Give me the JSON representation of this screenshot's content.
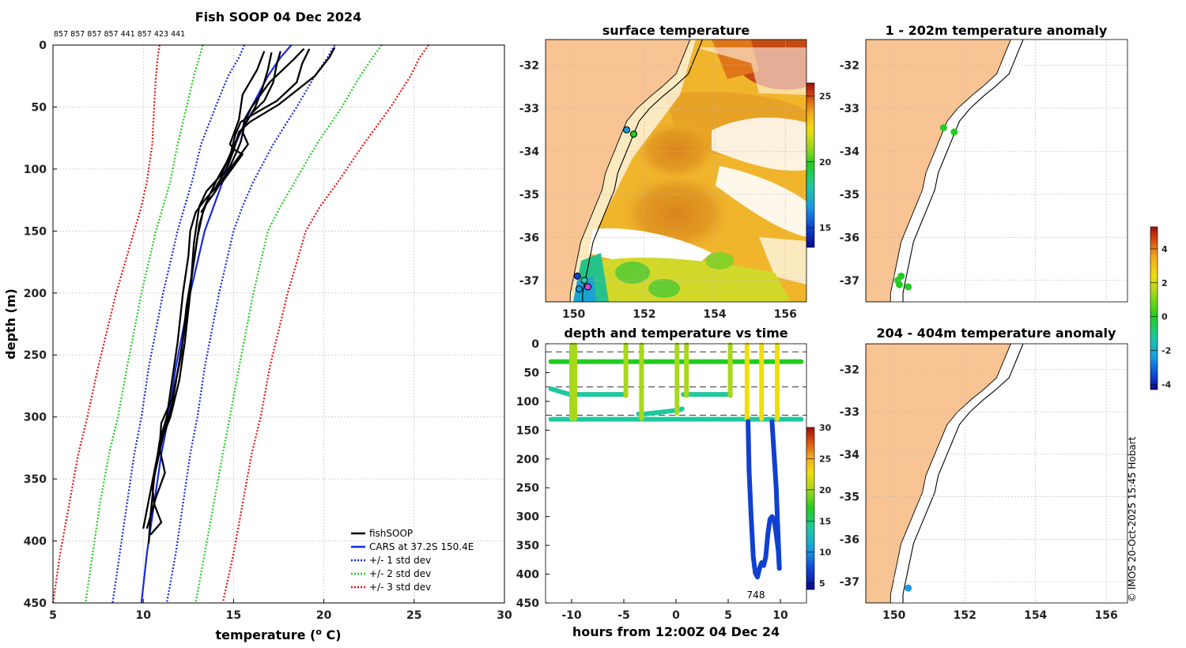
{
  "chart_data": [
    {
      "type": "line",
      "id": "profile",
      "title": "Fish SOOP 04 Dec 2024",
      "count_labels": "857 857 857 857 441 857 423 441",
      "xlabel_main": "temperature (",
      "xlabel_sup": "o",
      "xlabel_end": " C)",
      "ylabel": "depth (m)",
      "xlim": [
        5,
        30
      ],
      "ylim": [
        450,
        0
      ],
      "xticks": [
        5,
        10,
        15,
        20,
        25,
        30
      ],
      "yticks": [
        0,
        50,
        100,
        150,
        200,
        250,
        300,
        350,
        400,
        450
      ],
      "legend": [
        "fishSOOP",
        "CARS at 37.2S 150.4E",
        "+/- 1 std dev",
        "+/- 2 std dev",
        "+/- 3 std dev"
      ],
      "series": [
        {
          "name": "CARS at 37.2S 150.4E",
          "color": "#1528e0",
          "style": "solid",
          "x": [
            18.2,
            17.6,
            16.9,
            16.0,
            15.1,
            14.4,
            13.9,
            13.4,
            13.0,
            12.6,
            12.2,
            11.8,
            11.4,
            11.0,
            10.6,
            10.2,
            9.9
          ],
          "y": [
            0,
            10,
            25,
            50,
            80,
            110,
            130,
            150,
            175,
            200,
            230,
            260,
            300,
            330,
            370,
            410,
            450
          ]
        },
        {
          "name": "+1 std",
          "color": "#1528e0",
          "style": "dotted",
          "x": [
            20.6,
            20.2,
            19.5,
            18.5,
            17.2,
            16.1,
            15.5,
            15.0,
            14.6,
            14.2,
            13.8,
            13.4,
            13.0,
            12.6,
            12.2,
            11.8,
            11.3
          ],
          "y": [
            0,
            10,
            25,
            50,
            80,
            110,
            130,
            150,
            175,
            200,
            230,
            260,
            300,
            330,
            370,
            410,
            450
          ]
        },
        {
          "name": "-1 std",
          "color": "#1528e0",
          "style": "dotted",
          "x": [
            15.6,
            15.3,
            14.7,
            14.0,
            13.2,
            12.7,
            12.3,
            11.9,
            11.5,
            11.1,
            10.7,
            10.3,
            9.9,
            9.5,
            9.1,
            8.7,
            8.3
          ],
          "y": [
            0,
            10,
            25,
            50,
            80,
            110,
            130,
            150,
            175,
            200,
            230,
            260,
            300,
            330,
            370,
            410,
            450
          ]
        },
        {
          "name": "+2 std",
          "color": "#22cc22",
          "style": "dotted",
          "x": [
            23.2,
            22.7,
            22.0,
            21.0,
            19.6,
            18.4,
            17.6,
            16.9,
            16.5,
            16.1,
            15.7,
            15.3,
            14.8,
            14.4,
            13.9,
            13.4,
            12.9
          ],
          "y": [
            0,
            10,
            25,
            50,
            80,
            110,
            130,
            150,
            175,
            200,
            230,
            260,
            300,
            330,
            370,
            410,
            450
          ]
        },
        {
          "name": "-2 std",
          "color": "#22cc22",
          "style": "dotted",
          "x": [
            13.3,
            13.1,
            12.8,
            12.4,
            11.9,
            11.5,
            11.1,
            10.7,
            10.3,
            9.9,
            9.5,
            9.1,
            8.6,
            8.1,
            7.6,
            7.2,
            6.8
          ],
          "y": [
            0,
            10,
            25,
            50,
            80,
            110,
            130,
            150,
            175,
            200,
            230,
            260,
            300,
            330,
            370,
            410,
            450
          ]
        },
        {
          "name": "+3 std",
          "color": "#ee1111",
          "style": "dotted",
          "x": [
            25.8,
            25.3,
            24.8,
            23.7,
            22.2,
            20.8,
            19.8,
            19.0,
            18.5,
            18.0,
            17.5,
            17.0,
            16.5,
            16.0,
            15.5,
            15.0,
            14.4
          ],
          "y": [
            0,
            10,
            25,
            50,
            80,
            110,
            130,
            150,
            175,
            200,
            230,
            260,
            300,
            330,
            370,
            410,
            450
          ]
        },
        {
          "name": "-3 std",
          "color": "#ee1111",
          "style": "dotted",
          "x": [
            10.9,
            10.8,
            10.7,
            10.6,
            10.5,
            10.2,
            9.9,
            9.5,
            9.0,
            8.5,
            8.0,
            7.5,
            6.9,
            6.4,
            5.9,
            5.4,
            5.0
          ],
          "y": [
            0,
            10,
            25,
            50,
            80,
            110,
            130,
            150,
            175,
            200,
            230,
            260,
            300,
            330,
            370,
            410,
            450
          ]
        },
        {
          "name": "fishSOOP cast 1",
          "color": "#000000",
          "style": "solid",
          "x": [
            20.6,
            20.3,
            19.5,
            17.5,
            15.9,
            15.3,
            15.0,
            14.6,
            14.0,
            13.4,
            12.9,
            12.6,
            12.5,
            12.2,
            11.9,
            11.6,
            11.3,
            10.9,
            10.6,
            10.4,
            10.3
          ],
          "y": [
            2,
            10,
            25,
            48,
            62,
            70,
            85,
            100,
            115,
            125,
            135,
            150,
            170,
            200,
            240,
            270,
            300,
            320,
            350,
            380,
            402
          ]
        },
        {
          "name": "fishSOOP cast 2",
          "color": "#000000",
          "style": "solid",
          "x": [
            19.2,
            18.8,
            18.5,
            17.4,
            16.2,
            15.4,
            15.1,
            14.8,
            14.3,
            13.5,
            13.1,
            12.8,
            12.6,
            12.3,
            12.0,
            11.5,
            11.1,
            10.8,
            10.5,
            10.6,
            11.0,
            10.4
          ],
          "y": [
            3,
            15,
            30,
            45,
            55,
            62,
            72,
            90,
            105,
            118,
            130,
            160,
            200,
            240,
            270,
            300,
            315,
            335,
            355,
            370,
            385,
            395
          ]
        },
        {
          "name": "fishSOOP cast 3",
          "color": "#000000",
          "style": "solid",
          "x": [
            17.6,
            17.4,
            17.2,
            16.7,
            16.0,
            15.6,
            15.4,
            15.2,
            14.8,
            14.4,
            13.7,
            13.4,
            13.1,
            12.8,
            12.4,
            12.1,
            11.6,
            11.0,
            10.9,
            11.2,
            10.7,
            10.2
          ],
          "y": [
            5,
            15,
            30,
            45,
            55,
            65,
            78,
            85,
            98,
            110,
            120,
            130,
            145,
            175,
            210,
            250,
            285,
            305,
            325,
            345,
            365,
            390
          ]
        },
        {
          "name": "fishSOOP cast 4",
          "color": "#000000",
          "style": "solid",
          "x": [
            17.1,
            16.9,
            16.6,
            16.2,
            15.8,
            15.3,
            15.0,
            14.6,
            14.1,
            13.7,
            13.3,
            13.0,
            12.7,
            12.4,
            12.0,
            11.6,
            11.2,
            10.8,
            10.4,
            10.0
          ],
          "y": [
            6,
            20,
            35,
            50,
            60,
            72,
            82,
            95,
            108,
            120,
            135,
            155,
            185,
            220,
            255,
            290,
            310,
            330,
            360,
            390
          ]
        },
        {
          "name": "fishSOOP cast 5",
          "color": "#000000",
          "style": "solid",
          "x": [
            18.9,
            18.3,
            17.0,
            16.0,
            15.6,
            15.5,
            15.8,
            15.2,
            14.4,
            14.0,
            13.5,
            13.2
          ],
          "y": [
            3,
            12,
            30,
            50,
            60,
            70,
            80,
            92,
            108,
            118,
            128,
            135
          ]
        },
        {
          "name": "fishSOOP cast 6",
          "color": "#000000",
          "style": "solid",
          "x": [
            16.7,
            16.3,
            15.5,
            15.3,
            15.0,
            14.8,
            15.1,
            15.5,
            14.9,
            14.3
          ],
          "y": [
            5,
            20,
            40,
            60,
            72,
            80,
            85,
            88,
            100,
            112
          ]
        }
      ]
    },
    {
      "type": "heatmap",
      "id": "sst_map",
      "title": "surface temperature",
      "xlim": [
        149.2,
        156.6
      ],
      "ylim": [
        -37.5,
        -31.4
      ],
      "xticks": [
        150,
        152,
        154,
        156
      ],
      "yticks": [
        -32,
        -33,
        -34,
        -35,
        -36,
        -37
      ],
      "colorbar": {
        "ticks": [
          15,
          20,
          25
        ],
        "range": [
          13.5,
          26
        ]
      },
      "markers": [
        {
          "lon": 151.5,
          "lat": -33.5
        },
        {
          "lon": 151.7,
          "lat": -33.6
        },
        {
          "lon": 150.1,
          "lat": -36.9
        },
        {
          "lon": 150.3,
          "lat": -37.0
        },
        {
          "lon": 150.4,
          "lat": -37.15
        },
        {
          "lon": 150.15,
          "lat": -37.2
        }
      ]
    },
    {
      "type": "scatter",
      "id": "depth_time",
      "title": "depth and temperature vs time",
      "xlabel": "hours from 12:00Z 04 Dec 24",
      "xlim": [
        -12.5,
        12.5
      ],
      "ylim": [
        450,
        0
      ],
      "xticks": [
        -10,
        -5,
        0,
        5,
        10
      ],
      "yticks": [
        0,
        50,
        100,
        150,
        200,
        250,
        300,
        350,
        400,
        450
      ],
      "annotation": "748",
      "reference_depths": [
        14,
        75,
        124
      ],
      "colorbar": {
        "ticks": [
          5,
          10,
          15,
          20,
          25,
          30
        ],
        "range": [
          4,
          30
        ]
      },
      "tracks": [
        {
          "x": [
            -12.0,
            12.0
          ],
          "y": [
            31,
            31
          ],
          "temp": 18
        },
        {
          "x": [
            -12.0,
            12.0
          ],
          "y": [
            131,
            131
          ],
          "temp": 14
        },
        {
          "x": [
            -12.0,
            -10.2,
            -9.8,
            -9.6,
            -5.0,
            -4.8
          ],
          "y": [
            78,
            88,
            88,
            88,
            88,
            88
          ],
          "temp": 15
        },
        {
          "x": [
            0.7,
            1.0,
            5.0,
            5.2
          ],
          "y": [
            88,
            88,
            88,
            88
          ],
          "temp": 15
        },
        {
          "x": [
            -3.6,
            -3.0,
            0.3,
            0.6
          ],
          "y": [
            122,
            122,
            115,
            113
          ],
          "temp": 15
        },
        {
          "x": [
            -10.0,
            -10.0
          ],
          "y": [
            2,
            130
          ],
          "temp": 19
        },
        {
          "x": [
            -9.7,
            -9.7
          ],
          "y": [
            2,
            130
          ],
          "temp": 19
        },
        {
          "x": [
            -4.8,
            -4.8
          ],
          "y": [
            2,
            90
          ],
          "temp": 20
        },
        {
          "x": [
            -3.3,
            -3.3
          ],
          "y": [
            2,
            130
          ],
          "temp": 20
        },
        {
          "x": [
            0.1,
            0.1
          ],
          "y": [
            2,
            120
          ],
          "temp": 20
        },
        {
          "x": [
            1.0,
            1.0
          ],
          "y": [
            2,
            90
          ],
          "temp": 20
        },
        {
          "x": [
            5.2,
            5.2
          ],
          "y": [
            2,
            90
          ],
          "temp": 20
        },
        {
          "x": [
            6.8,
            6.8
          ],
          "y": [
            2,
            130
          ],
          "temp": 22
        },
        {
          "x": [
            8.2,
            8.2
          ],
          "y": [
            2,
            130
          ],
          "temp": 22
        },
        {
          "x": [
            9.7,
            9.7
          ],
          "y": [
            2,
            130
          ],
          "temp": 22
        },
        {
          "x": [
            6.9,
            7.0,
            7.2,
            7.4,
            7.6,
            7.8,
            8.0,
            8.2,
            8.4,
            8.6,
            8.8,
            9.0,
            9.2,
            9.4,
            9.6,
            9.8,
            9.9,
            9.6,
            9.2
          ],
          "y": [
            135,
            220,
            300,
            370,
            398,
            405,
            390,
            380,
            385,
            370,
            330,
            305,
            300,
            305,
            330,
            360,
            390,
            250,
            135
          ],
          "temp": 10
        }
      ]
    },
    {
      "type": "scatter",
      "id": "anom_upper",
      "title": "1 - 202m temperature anomaly",
      "xlim": [
        149.2,
        156.6
      ],
      "ylim": [
        -37.5,
        -31.4
      ],
      "xticks": [
        150,
        152,
        154,
        156
      ],
      "yticks": [
        -32,
        -33,
        -34,
        -35,
        -36,
        -37
      ],
      "points": [
        {
          "lon": 151.4,
          "lat": -33.45,
          "anom": 0.6
        },
        {
          "lon": 151.7,
          "lat": -33.55,
          "anom": 0.4
        },
        {
          "lon": 150.1,
          "lat": -37.0,
          "anom": 0.5
        },
        {
          "lon": 150.2,
          "lat": -36.9,
          "anom": 0.3
        },
        {
          "lon": 150.15,
          "lat": -37.1,
          "anom": 0.4
        },
        {
          "lon": 150.4,
          "lat": -37.15,
          "anom": 0.6
        }
      ]
    },
    {
      "type": "scatter",
      "id": "anom_lower",
      "title": "204 - 404m temperature anomaly",
      "xlim": [
        149.2,
        156.6
      ],
      "ylim": [
        -37.5,
        -31.4
      ],
      "xticks": [
        150,
        152,
        154,
        156
      ],
      "yticks": [
        -32,
        -33,
        -34,
        -35,
        -36,
        -37
      ],
      "points": [
        {
          "lon": 150.4,
          "lat": -37.15,
          "anom": -1.2
        }
      ],
      "colorbar": {
        "ticks": [
          -4,
          -2,
          0,
          2,
          4
        ],
        "range": [
          -4.3,
          5.3
        ]
      }
    }
  ],
  "credit": "© IMOS 20-Oct-2025 15:45 Hobart"
}
